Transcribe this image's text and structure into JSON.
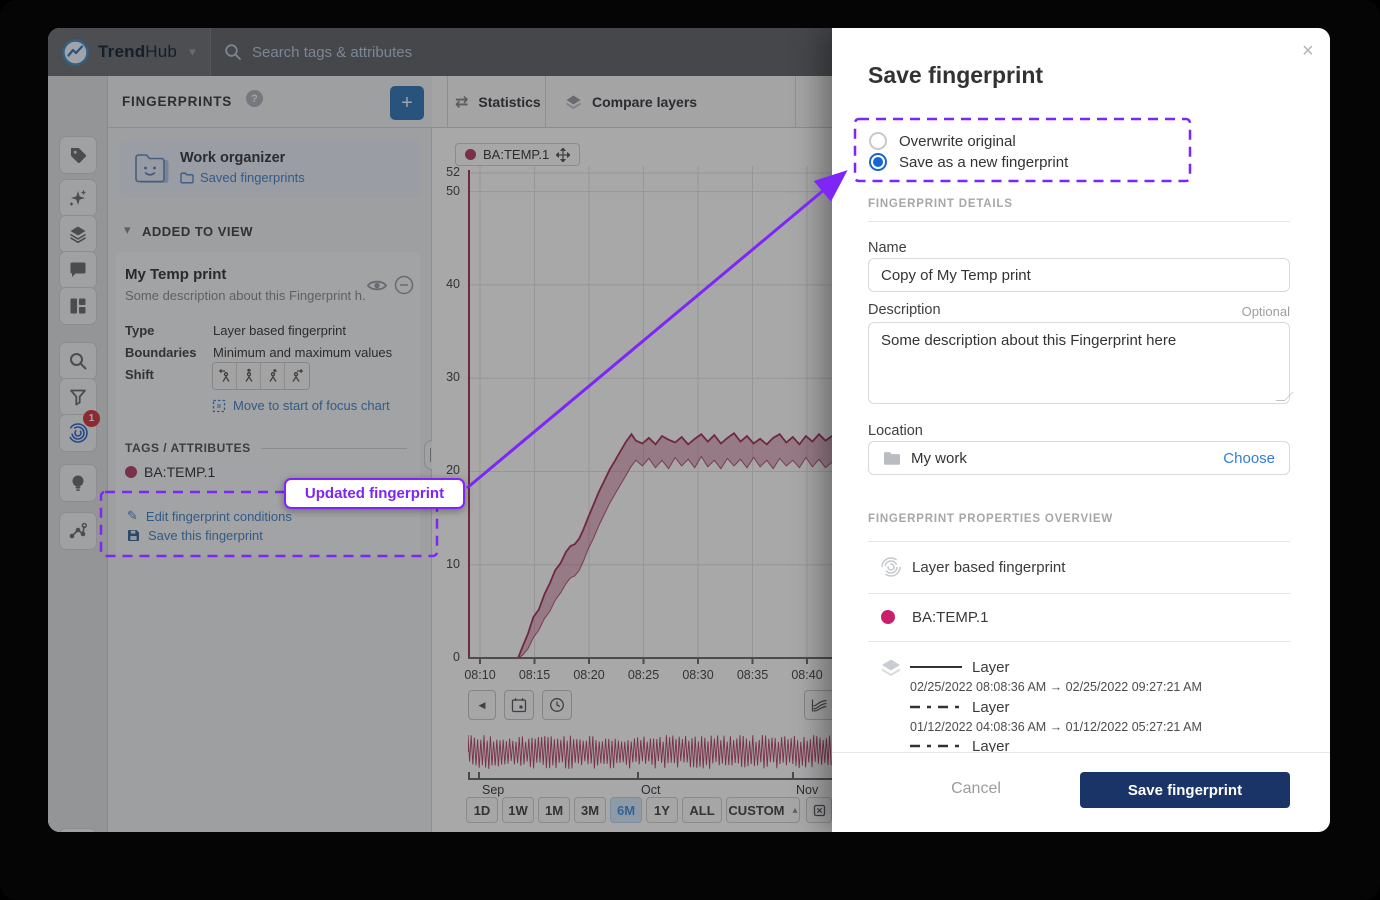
{
  "app": {
    "brand_bold": "Trend",
    "brand_light": "Hub",
    "search_placeholder": "Search tags & attributes"
  },
  "icons": {
    "caret_down": "▾",
    "caret_up": "▴",
    "close": "×",
    "gear": "⚙",
    "back": "◀",
    "help": "?",
    "plus": "+",
    "swap": "⇄",
    "pencil": "✎"
  },
  "sidebar": {
    "fingerprint_badge": "1"
  },
  "panel": {
    "title": "FINGERPRINTS",
    "work_organizer": {
      "title": "Work organizer",
      "link": "Saved fingerprints"
    },
    "added_section": "ADDED TO VIEW",
    "card": {
      "title": "My Temp print",
      "description": "Some description about this Fingerprint h...",
      "type_label": "Type",
      "type_value": "Layer based fingerprint",
      "boundaries_label": "Boundaries",
      "boundaries_value": "Minimum and maximum values",
      "shift_label": "Shift",
      "move_link": "Move to start of focus chart",
      "tags_header": "TAGS / ATTRIBUTES",
      "tag_name": "BA:TEMP.1",
      "edit_link": "Edit fingerprint conditions",
      "save_link": "Save this fingerprint"
    }
  },
  "tabs": {
    "statistics": "Statistics",
    "compare": "Compare layers"
  },
  "timebar": {
    "ranges": [
      "1D",
      "1W",
      "1M",
      "3M",
      "6M",
      "1Y",
      "ALL"
    ],
    "active": "6M",
    "custom": "CUSTOM",
    "months": [
      "Sep",
      "Oct",
      "Nov"
    ]
  },
  "modal": {
    "title": "Save fingerprint",
    "radio_overwrite": "Overwrite original",
    "radio_new": "Save as a new fingerprint",
    "details_header": "FINGERPRINT DETAILS",
    "name_label": "Name",
    "name_value": "Copy of My Temp print",
    "description_label": "Description",
    "optional": "Optional",
    "description_value": "Some description about this Fingerprint here",
    "location_label": "Location",
    "location_value": "My work",
    "choose": "Choose",
    "overview_header": "FINGERPRINT PROPERTIES OVERVIEW",
    "prop_type": "Layer based fingerprint",
    "prop_tag": "BA:TEMP.1",
    "layers": [
      {
        "label": "Layer",
        "style": "solid",
        "range": "02/25/2022 08:08:36 AM → 02/25/2022 09:27:21 AM"
      },
      {
        "label": "Layer",
        "style": "dashed",
        "range": "01/12/2022 04:08:36 AM → 01/12/2022 05:27:21 AM"
      },
      {
        "label": "Layer",
        "style": "dashed",
        "range": ""
      }
    ],
    "cancel": "Cancel",
    "save": "Save fingerprint"
  },
  "annotations": {
    "tooltip": "Updated fingerprint",
    "accent": "#7d26f5"
  },
  "colors": {
    "series": "#b5456b",
    "band_stroke": "#a63a5f",
    "accent_blue": "#4a86c9",
    "save_button": "#1a3467",
    "radio_selected": "#1565d8",
    "modal_tag_dot": "#ca1f6b"
  },
  "chart_data": {
    "type": "area",
    "title": "",
    "series": [
      {
        "name": "BA:TEMP.1",
        "color": "#b5456b",
        "representation": "fingerprint min-max band (lower/upper envelope)"
      }
    ],
    "x_tick_labels": [
      "08:10",
      "08:15",
      "08:20",
      "08:25",
      "08:30",
      "08:35",
      "08:40"
    ],
    "y_tick_values": [
      0,
      10,
      20,
      30,
      40,
      50,
      52
    ],
    "ylim": [
      0,
      53
    ],
    "x_axis_start": "08:09",
    "x_axis_end": "08:42",
    "grid": true,
    "legend_position": "top-left chip",
    "band_points_min_lo_hi": [
      [
        0,
        0,
        0
      ],
      [
        4.6,
        0,
        0
      ],
      [
        5,
        0.3,
        1.2
      ],
      [
        5.5,
        1,
        2.6
      ],
      [
        6,
        2.2,
        4.4
      ],
      [
        6.5,
        3,
        5.2
      ],
      [
        7,
        4.2,
        6.8
      ],
      [
        7.5,
        5,
        8
      ],
      [
        8,
        6.2,
        9.4
      ],
      [
        8.5,
        7,
        10.2
      ],
      [
        9,
        8,
        11.4
      ],
      [
        9.4,
        8.6,
        12
      ],
      [
        9.8,
        8.8,
        12.2
      ],
      [
        10.2,
        9.4,
        12.8
      ],
      [
        10.6,
        10.4,
        13.8
      ],
      [
        11,
        11.6,
        15
      ],
      [
        11.5,
        12.8,
        16.4
      ],
      [
        12,
        14.2,
        17.8
      ],
      [
        12.5,
        15.4,
        19
      ],
      [
        13,
        16.6,
        20.2
      ],
      [
        13.5,
        17.6,
        21.2
      ],
      [
        14,
        18.6,
        22.2
      ],
      [
        14.5,
        19.6,
        23.2
      ],
      [
        15,
        20.6,
        24
      ],
      [
        15.4,
        21.2,
        23.3
      ],
      [
        16,
        20.6,
        23
      ],
      [
        16.6,
        21.4,
        23.6
      ],
      [
        17.2,
        20.4,
        22.9
      ],
      [
        17.8,
        21.2,
        23.8
      ],
      [
        18.4,
        20.3,
        23.4
      ],
      [
        19,
        21.5,
        23.1
      ],
      [
        19.6,
        20.6,
        23.7
      ],
      [
        20.2,
        21.3,
        22.9
      ],
      [
        20.8,
        20.4,
        23.5
      ],
      [
        21.4,
        21.6,
        24
      ],
      [
        22,
        20.5,
        23.2
      ],
      [
        22.6,
        21.2,
        23.9
      ],
      [
        23.2,
        20.3,
        23
      ],
      [
        23.8,
        21.4,
        23.6
      ],
      [
        24.4,
        20.6,
        24.1
      ],
      [
        25,
        21.3,
        23.2
      ],
      [
        25.6,
        20.4,
        23.8
      ],
      [
        26.2,
        21.5,
        23
      ],
      [
        26.8,
        20.5,
        23.5
      ],
      [
        27.4,
        21.2,
        22.9
      ],
      [
        28,
        20.3,
        23.6
      ],
      [
        28.6,
        21.4,
        24
      ],
      [
        29.2,
        20.6,
        23.1
      ],
      [
        29.8,
        21.2,
        23.7
      ],
      [
        30.4,
        20.4,
        22.9
      ],
      [
        31,
        21.5,
        23.8
      ],
      [
        31.6,
        20.5,
        23.2
      ],
      [
        32.2,
        21.3,
        24
      ],
      [
        32.8,
        20.4,
        23.3
      ],
      [
        33.4,
        21,
        23.8
      ]
    ],
    "context_strip": {
      "series": "BA:TEMP.1",
      "months": [
        "Sep",
        "Oct",
        "Nov"
      ],
      "pattern": "dense high-frequency oscillation spanning strip height"
    }
  }
}
